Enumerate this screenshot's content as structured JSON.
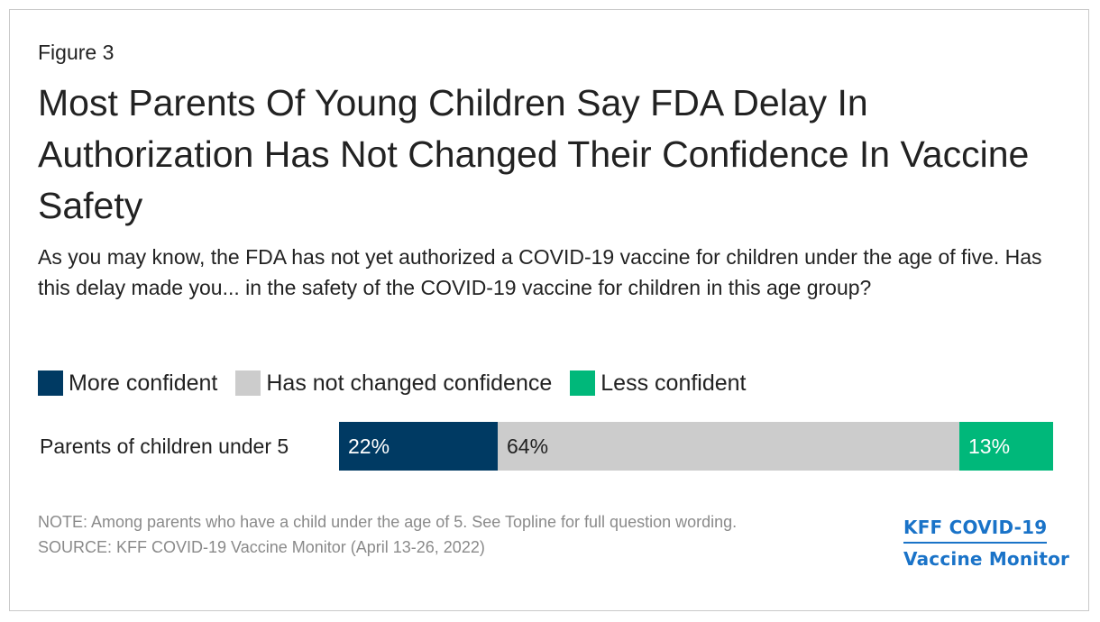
{
  "figure_label": "Figure 3",
  "title": "Most Parents Of Young Children Say FDA Delay In Authorization Has Not Changed Their Confidence In Vaccine Safety",
  "subtitle": "As you may know, the FDA has not yet authorized a COVID-19 vaccine for children under the age of five. Has this delay made you... in the safety of the COVID-19 vaccine for children in this age group?",
  "legend": [
    {
      "label": "More confident",
      "color": "#003a63"
    },
    {
      "label": "Has not changed confidence",
      "color": "#cccccc"
    },
    {
      "label": "Less confident",
      "color": "#00b87a"
    }
  ],
  "notes": {
    "note": "NOTE: Among parents who have a child under the age of 5. See Topline for full question wording.",
    "source": "SOURCE: KFF COVID-19 Vaccine Monitor (April 13-26, 2022)"
  },
  "logo": {
    "line1": "KFF COVID-19",
    "line2": "Vaccine Monitor"
  },
  "chart_data": {
    "type": "bar",
    "orientation": "horizontal",
    "stacked": true,
    "categories": [
      "Parents of children under 5"
    ],
    "series": [
      {
        "name": "More confident",
        "values": [
          22
        ],
        "labels": [
          "22%"
        ],
        "color": "#003a63",
        "label_color": "#ffffff"
      },
      {
        "name": "Has not changed confidence",
        "values": [
          64
        ],
        "labels": [
          "64%"
        ],
        "color": "#cccccc",
        "label_color": "#222222"
      },
      {
        "name": "Less confident",
        "values": [
          13
        ],
        "labels": [
          "13%"
        ],
        "color": "#00b87a",
        "label_color": "#ffffff"
      }
    ],
    "xlim": [
      0,
      99
    ],
    "legend_position": "top"
  }
}
